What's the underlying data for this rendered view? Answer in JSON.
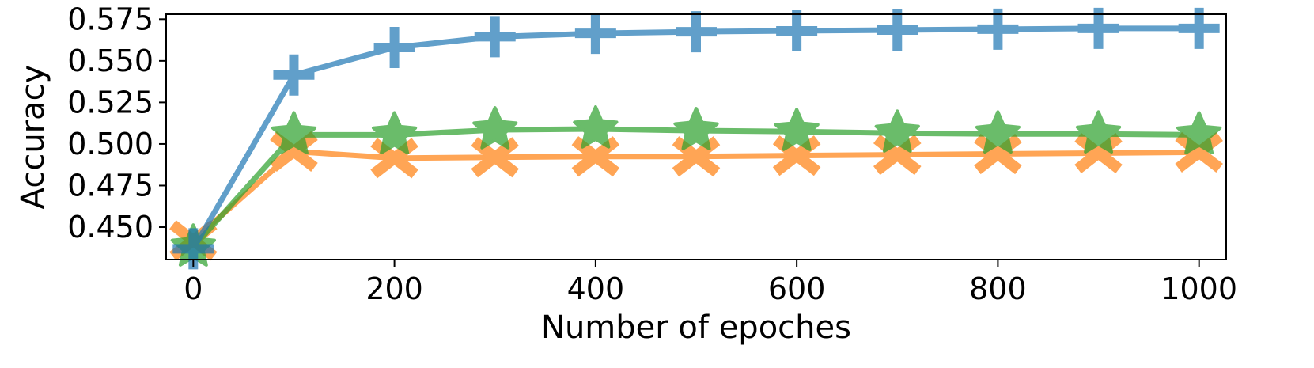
{
  "chart_data": {
    "type": "line",
    "title": "",
    "xlabel": "Number of epoches",
    "ylabel": "Accuracy",
    "xlim": [
      -27,
      1027
    ],
    "ylim": [
      0.4305,
      0.578
    ],
    "xticks": [
      0,
      200,
      400,
      600,
      800,
      1000
    ],
    "xtick_labels": [
      "0",
      "200",
      "400",
      "600",
      "800",
      "1000"
    ],
    "yticks": [
      0.45,
      0.475,
      0.5,
      0.525,
      0.55,
      0.575
    ],
    "ytick_labels": [
      "0.450",
      "0.475",
      "0.500",
      "0.525",
      "0.550",
      "0.575"
    ],
    "grid": false,
    "legend": "none",
    "x": [
      0,
      100,
      200,
      300,
      400,
      500,
      600,
      700,
      800,
      900,
      1000
    ],
    "series": [
      {
        "marker": "plus",
        "color": "#1f77b4",
        "values": [
          0.437,
          0.5415,
          0.558,
          0.5645,
          0.5665,
          0.5675,
          0.568,
          0.5685,
          0.569,
          0.5695,
          0.5695
        ]
      },
      {
        "marker": "x",
        "color": "#ff7f0e",
        "values": [
          0.442,
          0.4955,
          0.4915,
          0.492,
          0.4925,
          0.4925,
          0.493,
          0.4935,
          0.494,
          0.4945,
          0.495
        ]
      },
      {
        "marker": "star",
        "color": "#2ca02c",
        "values": [
          0.438,
          0.5055,
          0.5055,
          0.5085,
          0.509,
          0.508,
          0.5075,
          0.5065,
          0.506,
          0.506,
          0.5055
        ]
      }
    ]
  }
}
